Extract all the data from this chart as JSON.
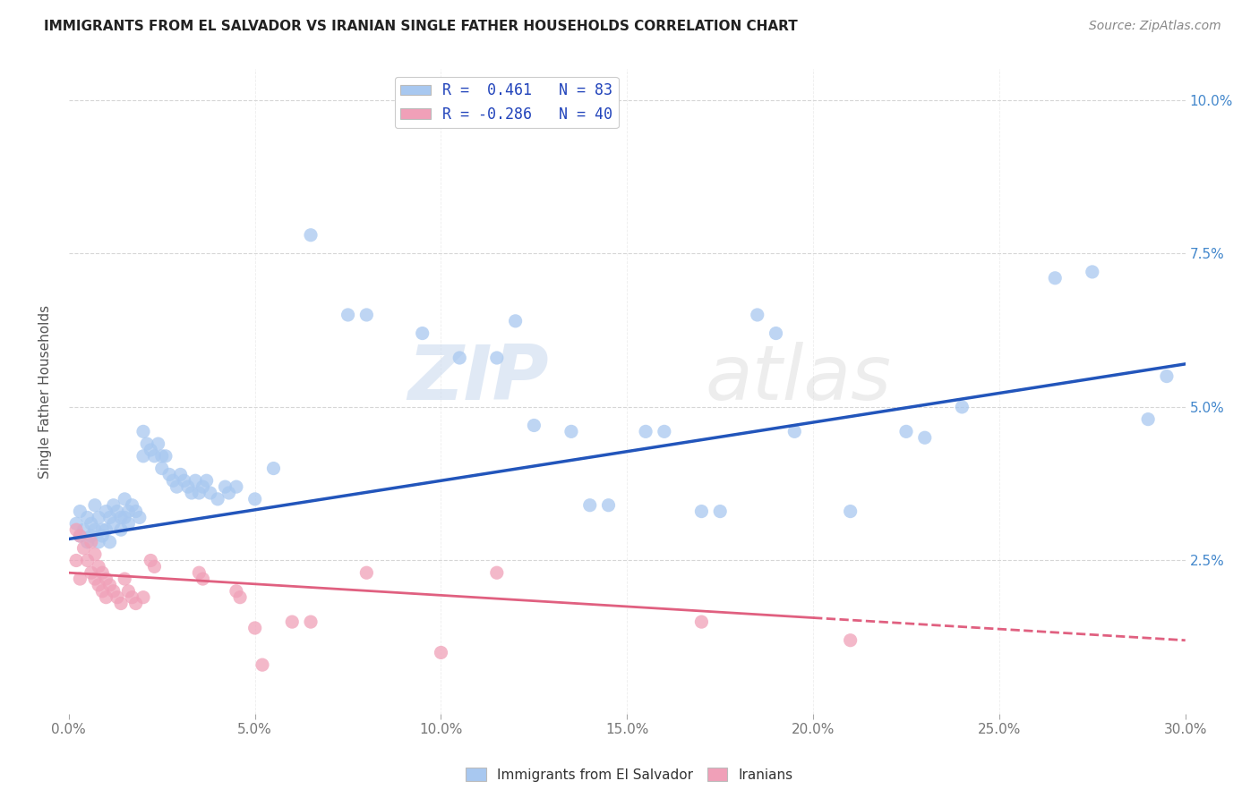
{
  "title": "IMMIGRANTS FROM EL SALVADOR VS IRANIAN SINGLE FATHER HOUSEHOLDS CORRELATION CHART",
  "source": "Source: ZipAtlas.com",
  "xlabel_ticks": [
    "0.0%",
    "5.0%",
    "10.0%",
    "15.0%",
    "20.0%",
    "25.0%",
    "30.0%"
  ],
  "xlabel_vals": [
    0.0,
    5.0,
    10.0,
    15.0,
    20.0,
    25.0,
    30.0
  ],
  "ylabel": "Single Father Households",
  "ylabel_ticks": [
    "",
    "2.5%",
    "5.0%",
    "7.5%",
    "10.0%"
  ],
  "ylabel_vals": [
    0.0,
    2.5,
    5.0,
    7.5,
    10.0
  ],
  "blue_R": "0.461",
  "blue_N": "83",
  "pink_R": "-0.286",
  "pink_N": "40",
  "legend_label_blue": "Immigrants from El Salvador",
  "legend_label_pink": "Iranians",
  "blue_scatter": [
    [
      0.2,
      3.1
    ],
    [
      0.3,
      3.3
    ],
    [
      0.3,
      2.9
    ],
    [
      0.4,
      3.0
    ],
    [
      0.5,
      2.8
    ],
    [
      0.5,
      3.2
    ],
    [
      0.6,
      3.1
    ],
    [
      0.6,
      2.9
    ],
    [
      0.7,
      3.4
    ],
    [
      0.7,
      3.0
    ],
    [
      0.8,
      3.2
    ],
    [
      0.8,
      2.8
    ],
    [
      0.9,
      3.0
    ],
    [
      0.9,
      2.9
    ],
    [
      1.0,
      3.3
    ],
    [
      1.0,
      3.0
    ],
    [
      1.1,
      3.2
    ],
    [
      1.1,
      2.8
    ],
    [
      1.2,
      3.4
    ],
    [
      1.2,
      3.1
    ],
    [
      1.3,
      3.3
    ],
    [
      1.4,
      3.2
    ],
    [
      1.4,
      3.0
    ],
    [
      1.5,
      3.5
    ],
    [
      1.5,
      3.2
    ],
    [
      1.6,
      3.3
    ],
    [
      1.6,
      3.1
    ],
    [
      1.7,
      3.4
    ],
    [
      1.8,
      3.3
    ],
    [
      1.9,
      3.2
    ],
    [
      2.0,
      4.6
    ],
    [
      2.0,
      4.2
    ],
    [
      2.1,
      4.4
    ],
    [
      2.2,
      4.3
    ],
    [
      2.3,
      4.2
    ],
    [
      2.4,
      4.4
    ],
    [
      2.5,
      4.2
    ],
    [
      2.5,
      4.0
    ],
    [
      2.6,
      4.2
    ],
    [
      2.7,
      3.9
    ],
    [
      2.8,
      3.8
    ],
    [
      2.9,
      3.7
    ],
    [
      3.0,
      3.9
    ],
    [
      3.1,
      3.8
    ],
    [
      3.2,
      3.7
    ],
    [
      3.3,
      3.6
    ],
    [
      3.4,
      3.8
    ],
    [
      3.5,
      3.6
    ],
    [
      3.6,
      3.7
    ],
    [
      3.7,
      3.8
    ],
    [
      3.8,
      3.6
    ],
    [
      4.0,
      3.5
    ],
    [
      4.2,
      3.7
    ],
    [
      4.3,
      3.6
    ],
    [
      4.5,
      3.7
    ],
    [
      5.0,
      3.5
    ],
    [
      5.5,
      4.0
    ],
    [
      6.5,
      7.8
    ],
    [
      7.5,
      6.5
    ],
    [
      8.0,
      6.5
    ],
    [
      9.5,
      6.2
    ],
    [
      10.5,
      5.8
    ],
    [
      11.5,
      5.8
    ],
    [
      12.0,
      6.4
    ],
    [
      12.5,
      4.7
    ],
    [
      13.5,
      4.6
    ],
    [
      14.0,
      3.4
    ],
    [
      14.5,
      3.4
    ],
    [
      15.5,
      4.6
    ],
    [
      16.0,
      4.6
    ],
    [
      17.0,
      3.3
    ],
    [
      17.5,
      3.3
    ],
    [
      18.5,
      6.5
    ],
    [
      19.0,
      6.2
    ],
    [
      19.5,
      4.6
    ],
    [
      21.0,
      3.3
    ],
    [
      22.5,
      4.6
    ],
    [
      23.0,
      4.5
    ],
    [
      24.0,
      5.0
    ],
    [
      26.5,
      7.1
    ],
    [
      27.5,
      7.2
    ],
    [
      29.0,
      4.8
    ],
    [
      29.5,
      5.5
    ]
  ],
  "pink_scatter": [
    [
      0.2,
      3.0
    ],
    [
      0.2,
      2.5
    ],
    [
      0.3,
      2.9
    ],
    [
      0.3,
      2.2
    ],
    [
      0.4,
      2.7
    ],
    [
      0.5,
      2.5
    ],
    [
      0.6,
      2.8
    ],
    [
      0.6,
      2.3
    ],
    [
      0.7,
      2.6
    ],
    [
      0.7,
      2.2
    ],
    [
      0.8,
      2.4
    ],
    [
      0.8,
      2.1
    ],
    [
      0.9,
      2.3
    ],
    [
      0.9,
      2.0
    ],
    [
      1.0,
      2.2
    ],
    [
      1.0,
      1.9
    ],
    [
      1.1,
      2.1
    ],
    [
      1.2,
      2.0
    ],
    [
      1.3,
      1.9
    ],
    [
      1.4,
      1.8
    ],
    [
      1.5,
      2.2
    ],
    [
      1.6,
      2.0
    ],
    [
      1.7,
      1.9
    ],
    [
      1.8,
      1.8
    ],
    [
      2.0,
      1.9
    ],
    [
      2.2,
      2.5
    ],
    [
      2.3,
      2.4
    ],
    [
      3.5,
      2.3
    ],
    [
      3.6,
      2.2
    ],
    [
      4.5,
      2.0
    ],
    [
      4.6,
      1.9
    ],
    [
      5.0,
      1.4
    ],
    [
      5.2,
      0.8
    ],
    [
      6.0,
      1.5
    ],
    [
      6.5,
      1.5
    ],
    [
      8.0,
      2.3
    ],
    [
      10.0,
      1.0
    ],
    [
      11.5,
      2.3
    ],
    [
      17.0,
      1.5
    ],
    [
      21.0,
      1.2
    ]
  ],
  "blue_line": [
    [
      0.0,
      2.85
    ],
    [
      30.0,
      5.7
    ]
  ],
  "pink_line": [
    [
      0.0,
      2.3
    ],
    [
      30.0,
      1.2
    ]
  ],
  "pink_line_dash": [
    [
      20.0,
      1.5
    ],
    [
      30.0,
      1.2
    ]
  ],
  "blue_scatter_color": "#A8C8F0",
  "pink_scatter_color": "#F0A0B8",
  "blue_line_color": "#2255BB",
  "pink_line_color": "#E06080",
  "background_color": "#FFFFFF",
  "grid_color": "#CCCCCC",
  "watermark": "ZIPatlas",
  "xlim": [
    0.0,
    30.0
  ],
  "ylim": [
    0.0,
    10.5
  ]
}
